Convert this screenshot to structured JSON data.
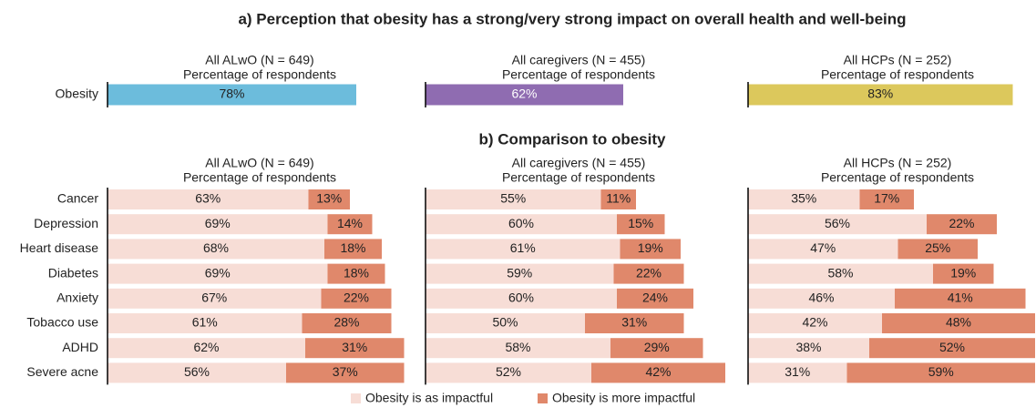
{
  "chart_data": [
    {
      "type": "bar",
      "title": "a) Perception that obesity has a strong/very strong impact on overall health and well-being",
      "categories": [
        "Obesity"
      ],
      "panels": [
        {
          "header": "All ALwO (N = 649)",
          "subheader": "Percentage of respondents",
          "color": "#6cbcdc",
          "label_color": "#222222",
          "values": [
            78
          ],
          "value_labels": [
            "78%"
          ]
        },
        {
          "header": "All caregivers (N = 455)",
          "subheader": "Percentage of respondents",
          "color": "#8f6cb1",
          "label_color": "#ffffff",
          "values": [
            62
          ],
          "value_labels": [
            "62%"
          ]
        },
        {
          "header": "All HCPs (N = 252)",
          "subheader": "Percentage of respondents",
          "color": "#dcc85c",
          "label_color": "#222222",
          "values": [
            83
          ],
          "value_labels": [
            "83%"
          ]
        }
      ]
    },
    {
      "type": "stacked_bar",
      "title": "b) Comparison to obesity",
      "categories": [
        "Cancer",
        "Depression",
        "Heart disease",
        "Diabetes",
        "Anxiety",
        "Tobacco use",
        "ADHD",
        "Severe acne"
      ],
      "series": [
        {
          "name": "Obesity is as impactful",
          "color": "#f7ddd6"
        },
        {
          "name": "Obesity is more impactful",
          "color": "#e0886b"
        }
      ],
      "panels": [
        {
          "header": "All ALwO (N = 649)",
          "subheader": "Percentage of respondents",
          "values": [
            [
              63,
              69,
              68,
              69,
              67,
              61,
              62,
              56
            ],
            [
              13,
              14,
              18,
              18,
              22,
              28,
              31,
              37
            ]
          ],
          "value_labels": [
            [
              "63%",
              "69%",
              "68%",
              "69%",
              "67%",
              "61%",
              "62%",
              "56%"
            ],
            [
              "13%",
              "14%",
              "18%",
              "18%",
              "22%",
              "28%",
              "31%",
              "37%"
            ]
          ]
        },
        {
          "header": "All caregivers (N = 455)",
          "subheader": "Percentage of respondents",
          "values": [
            [
              55,
              60,
              61,
              59,
              60,
              50,
              58,
              52
            ],
            [
              11,
              15,
              19,
              22,
              24,
              31,
              29,
              42
            ]
          ],
          "value_labels": [
            [
              "55%",
              "60%",
              "61%",
              "59%",
              "60%",
              "50%",
              "58%",
              "52%"
            ],
            [
              "11%",
              "15%",
              "19%",
              "22%",
              "24%",
              "31%",
              "29%",
              "42%"
            ]
          ]
        },
        {
          "header": "All HCPs (N = 252)",
          "subheader": "Percentage of respondents",
          "values": [
            [
              35,
              56,
              47,
              58,
              46,
              42,
              38,
              31
            ],
            [
              17,
              22,
              25,
              19,
              41,
              48,
              52,
              59
            ]
          ],
          "value_labels": [
            [
              "35%",
              "56%",
              "47%",
              "58%",
              "46%",
              "42%",
              "38%",
              "31%"
            ],
            [
              "17%",
              "22%",
              "25%",
              "19%",
              "41%",
              "48%",
              "52%",
              "59%"
            ]
          ]
        }
      ]
    }
  ]
}
